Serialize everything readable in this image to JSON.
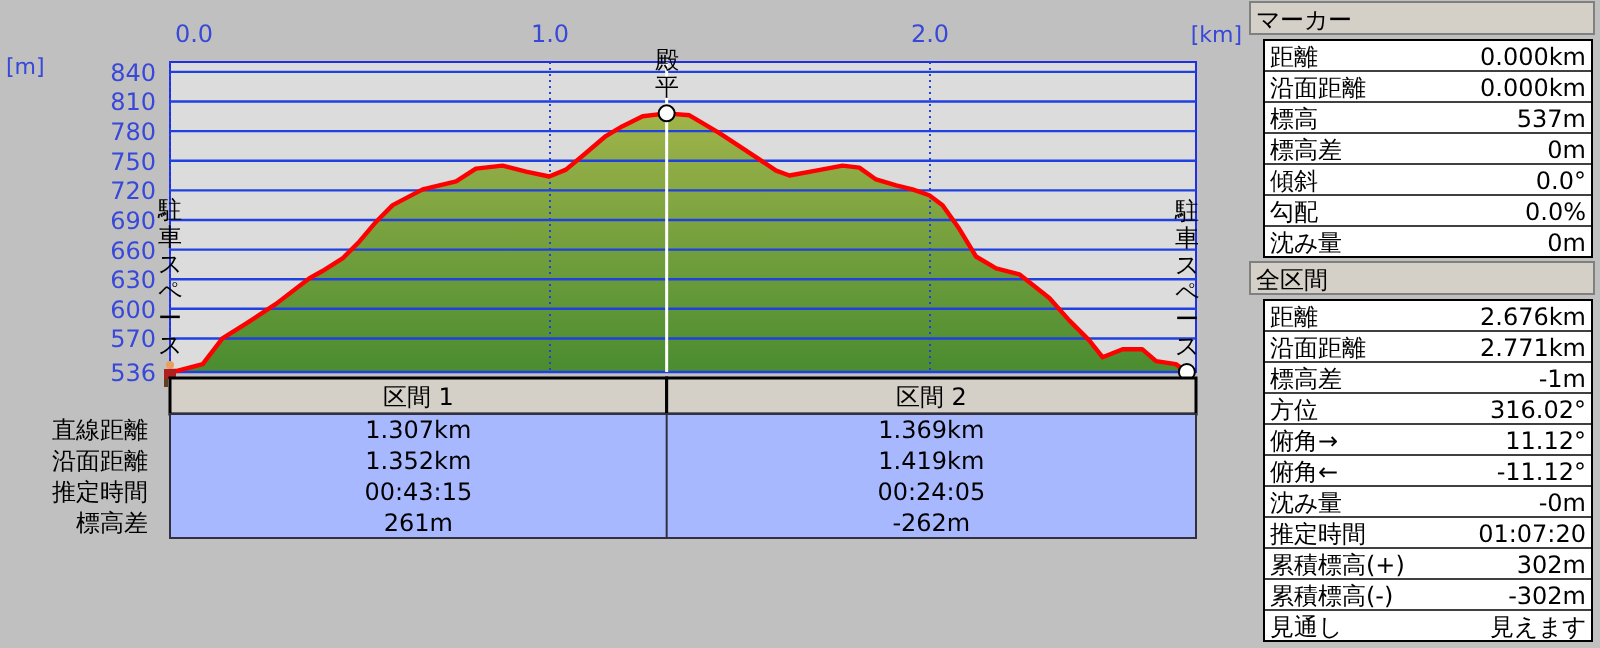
{
  "chart_data": [
    {
      "type": "area",
      "xlabel": "[km]",
      "ylabel": "[m]",
      "x": [
        0,
        0.016,
        0.086,
        0.138,
        0.2,
        0.279,
        0.367,
        0.4,
        0.454,
        0.498,
        0.542,
        0.586,
        0.665,
        0.753,
        0.805,
        0.875,
        0.937,
        0.998,
        1.042,
        1.086,
        1.147,
        1.191,
        1.244,
        1.307,
        1.367,
        1.446,
        1.525,
        1.595,
        1.63,
        1.7,
        1.77,
        1.814,
        1.858,
        1.911,
        1.954,
        1.998,
        2.033,
        2.077,
        2.121,
        2.174,
        2.235,
        2.314,
        2.367,
        2.419,
        2.454,
        2.507,
        2.559,
        2.595,
        2.647,
        2.676
      ],
      "series": [
        {
          "color": "#ff0000",
          "values": [
            537,
            537,
            544,
            570,
            585,
            605,
            631,
            638,
            651,
            668,
            688,
            705,
            721,
            729,
            742,
            745,
            739,
            734,
            741,
            755,
            775,
            785,
            795,
            798,
            796,
            778,
            758,
            740,
            735,
            740,
            745,
            743,
            731,
            725,
            721,
            715,
            705,
            681,
            653,
            641,
            635,
            611,
            588,
            568,
            551,
            559,
            559,
            547,
            544,
            536
          ]
        }
      ],
      "xlim": [
        0,
        2.7
      ],
      "ylim": [
        536,
        850
      ],
      "xticks": [
        {
          "value": 0,
          "label": "0.0"
        },
        {
          "value": 1,
          "label": "1.0"
        },
        {
          "value": 2,
          "label": "2.0"
        }
      ],
      "yticks": [
        536,
        570,
        600,
        630,
        660,
        690,
        720,
        750,
        780,
        810,
        840
      ],
      "grid": true,
      "ref_lines": [
        {
          "axis": "x",
          "value": 1.307,
          "color": "#ffffff"
        }
      ],
      "annotations": [
        {
          "text": "駐車スペース",
          "x": 0,
          "y": 537
        },
        {
          "text": "殿平",
          "x": 1.307,
          "y": 798
        },
        {
          "text": "駐車スペース",
          "x": 2.676,
          "y": 536
        }
      ]
    },
    {
      "type": "other",
      "categories": [
        "区間 1",
        "区間 2"
      ],
      "y_categories": [
        "直線距離",
        "沿面距離",
        "推定時間",
        "標高差"
      ],
      "cell_labels": [
        [
          "1.307km",
          "1.369km"
        ],
        [
          "1.352km",
          "1.419km"
        ],
        [
          "00:43:15",
          "00:24:05"
        ],
        [
          "261m",
          "-262m"
        ]
      ]
    },
    {
      "type": "other",
      "title": "マーカー",
      "annotations": [
        "距離",
        "0.000km",
        "沿面距離",
        "0.000km",
        "標高",
        "537m",
        "標高差",
        "0m",
        "傾斜",
        "0.0°",
        "勾配",
        "0.0%",
        "沈み量",
        "0m"
      ]
    },
    {
      "type": "other",
      "title": "全区間",
      "annotations": [
        "距離",
        "2.676km",
        "沿面距離",
        "2.771km",
        "標高差",
        "-1m",
        "方位",
        "316.02°",
        "俯角→",
        "11.12°",
        "俯角←",
        "-11.12°",
        "沈み量",
        "-0m",
        "推定時間",
        "01:07:20",
        "累積標高(+)",
        "302m",
        "累積標高(-)",
        "-302m",
        "見通し",
        "見えます"
      ]
    }
  ]
}
